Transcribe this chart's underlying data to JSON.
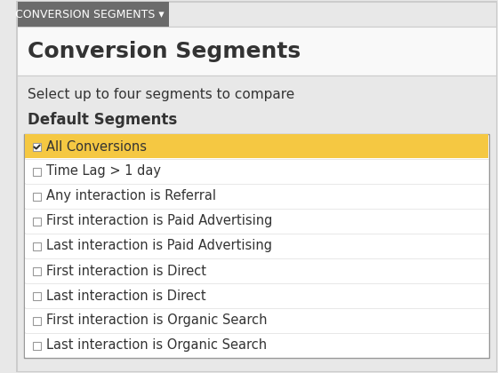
{
  "tab_label": "CONVERSION SEGMENTS ▾",
  "tab_bg": "#6b6b6b",
  "tab_text_color": "#ffffff",
  "tab_font_size": 9,
  "header_text": "Conversion Segments",
  "header_font_size": 18,
  "subtitle_text": "Select up to four segments to compare",
  "subtitle_font_size": 11,
  "section_label": "Default Segments",
  "section_font_size": 12,
  "outer_bg": "#e8e8e8",
  "header_bg": "#f5f5f5",
  "list_bg": "#ffffff",
  "checked_row_bg": "#f5c842",
  "border_color": "#cccccc",
  "list_border_color": "#999999",
  "items": [
    {
      "text": "All Conversions",
      "checked": true
    },
    {
      "text": "Time Lag > 1 day",
      "checked": false
    },
    {
      "text": "Any interaction is Referral",
      "checked": false
    },
    {
      "text": "First interaction is Paid Advertising",
      "checked": false
    },
    {
      "text": "Last interaction is Paid Advertising",
      "checked": false
    },
    {
      "text": "First interaction is Direct",
      "checked": false
    },
    {
      "text": "Last interaction is Direct",
      "checked": false
    },
    {
      "text": "First interaction is Organic Search",
      "checked": false
    },
    {
      "text": "Last interaction is Organic Search",
      "checked": false
    }
  ],
  "item_font_size": 10.5,
  "checkbox_color": "#ffffff",
  "checkbox_border": "#999999",
  "check_color": "#333333",
  "text_color": "#333333",
  "figsize": [
    5.6,
    4.2
  ],
  "dpi": 100
}
